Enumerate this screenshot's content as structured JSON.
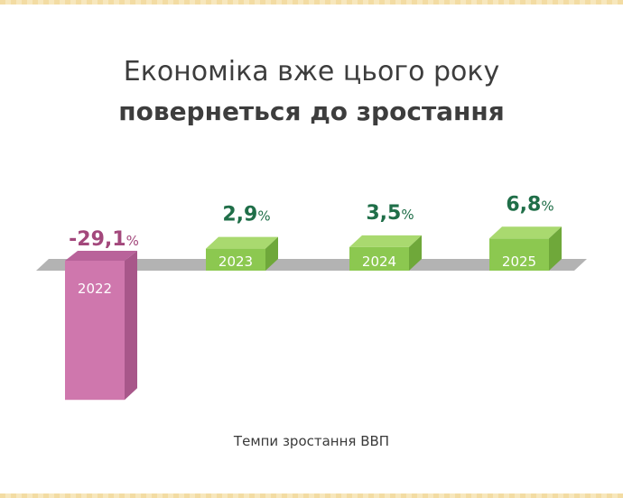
{
  "title": {
    "line1": "Економіка вже цього року",
    "line2": "повернеться до зростання"
  },
  "caption": "Темпи зростання ВВП",
  "colors": {
    "negative_front": "#cf77ad",
    "negative_side": "#a8578a",
    "negative_top": "#b9639a",
    "negative_label": "#a3487c",
    "positive_front": "#8cc850",
    "positive_side": "#6fa83a",
    "positive_top": "#a9d96f",
    "positive_label": "#1f6e48",
    "baseline": "#b3b3b3"
  },
  "chart_data": {
    "type": "bar",
    "categories": [
      "2022",
      "2023",
      "2024",
      "2025"
    ],
    "values": [
      -29.1,
      2.9,
      3.5,
      6.8
    ],
    "value_labels": [
      "-29,1",
      "2,9",
      "3,5",
      "6,8"
    ],
    "unit": "%",
    "title": "Економіка вже цього року повернеться до зростання",
    "xlabel": "Темпи зростання ВВП",
    "ylabel": ""
  }
}
